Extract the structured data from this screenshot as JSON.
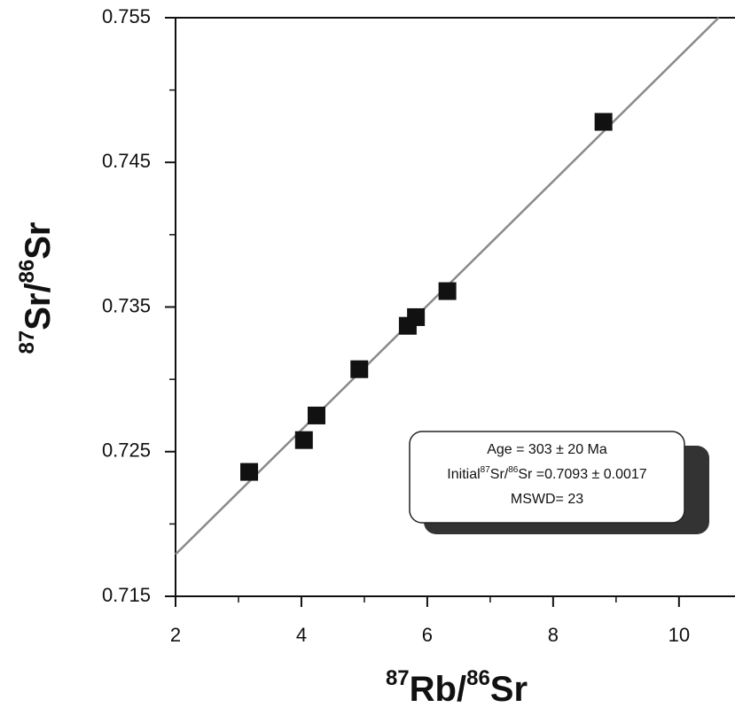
{
  "chart_data": {
    "type": "scatter",
    "x_label": [
      "87",
      "Rb/",
      "86",
      "Sr"
    ],
    "y_label": [
      "87",
      "Sr/",
      "86",
      "Sr"
    ],
    "x": [
      3.17,
      4.04,
      4.24,
      4.92,
      5.69,
      5.82,
      6.32,
      8.8
    ],
    "values": [
      0.7236,
      0.7258,
      0.7275,
      0.7307,
      0.7337,
      0.7343,
      0.7361,
      0.7478
    ],
    "color": "#111111",
    "fit_line": {
      "x": [
        2,
        10.63
      ],
      "y": [
        0.7179,
        0.755
      ],
      "color": "#8a8a8a"
    },
    "xlim": [
      2,
      10.89
    ],
    "ylim": [
      0.715,
      0.755
    ],
    "xticks": [
      2,
      4,
      6,
      8,
      10
    ],
    "yticks": [
      0.715,
      0.725,
      0.735,
      0.745,
      0.755
    ],
    "xminorticks": [
      3,
      5,
      7,
      9
    ],
    "yminorticks": [
      0.72,
      0.73,
      0.74,
      0.75
    ],
    "annotation": [
      "Age = 303 ± 20 Ma",
      [
        "Initial",
        "87",
        "Sr/",
        "86",
        "Sr =0.7093 ± 0.0017"
      ],
      "MSWD= 23"
    ]
  }
}
